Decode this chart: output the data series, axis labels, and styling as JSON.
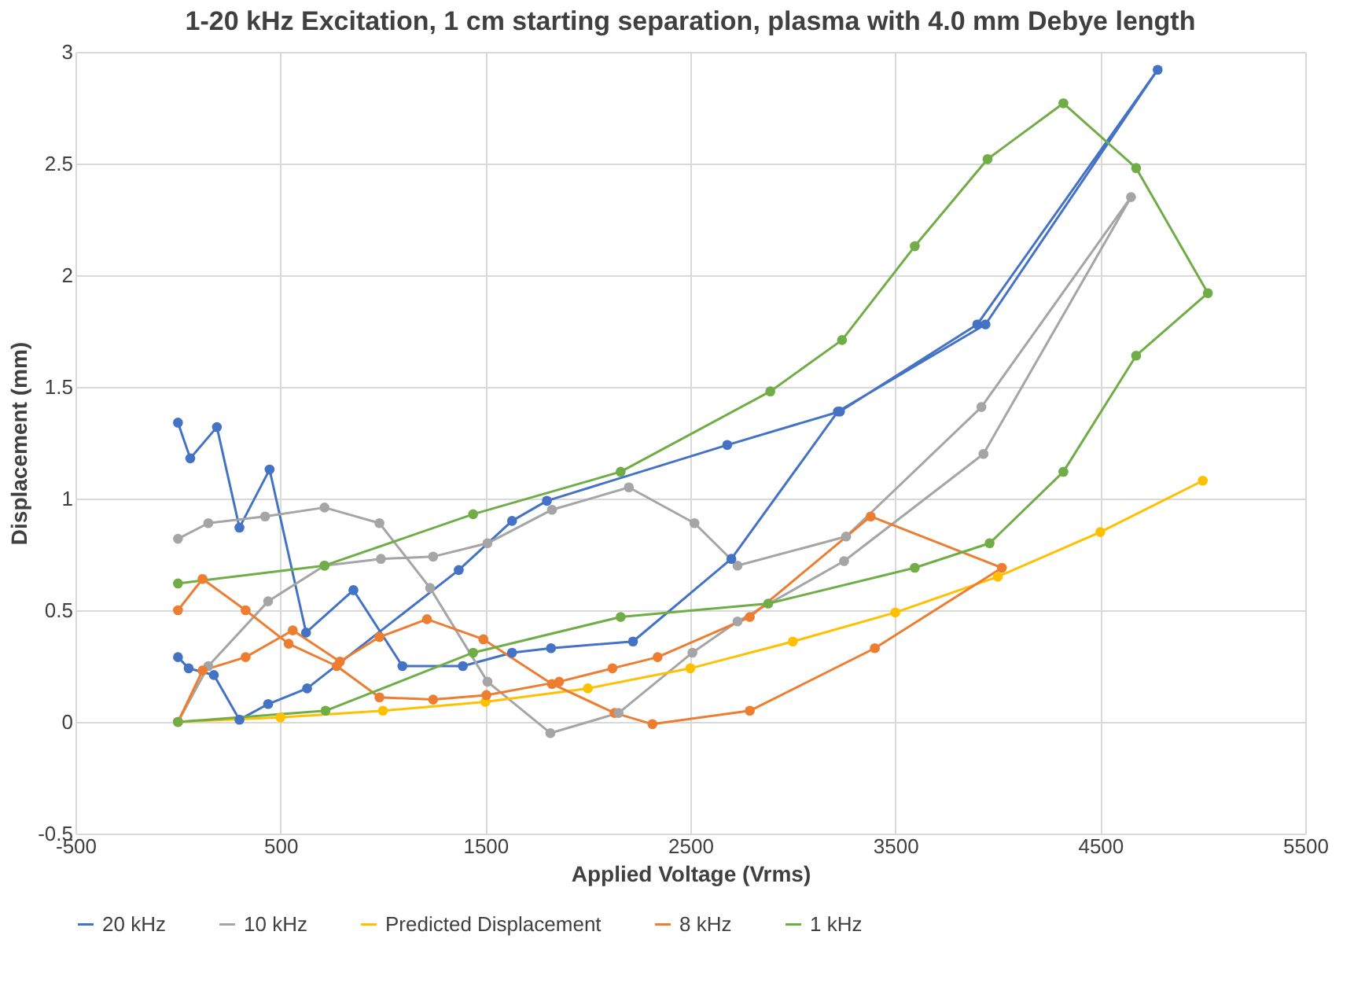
{
  "chart_data": {
    "type": "line",
    "title": "1-20 kHz Excitation, 1 cm starting separation, plasma with 4.0 mm Debye length",
    "xlabel": "Applied Voltage (Vrms)",
    "ylabel": "Displacement (mm)",
    "xlim": [
      -500,
      5500
    ],
    "xticks": [
      -500,
      500,
      1500,
      2500,
      3500,
      4500,
      5500
    ],
    "ylim": [
      -0.5,
      3
    ],
    "yticks": [
      -0.5,
      0,
      0.5,
      1,
      1.5,
      2,
      2.5,
      3
    ],
    "grid": true,
    "legend": "bottom",
    "marker": "circle",
    "line_style": "solid",
    "series": [
      {
        "name": "20 kHz",
        "color": "#4472c4",
        "x": [
          0,
          52,
          175,
          300,
          440,
          630,
          1370,
          1630,
          1800,
          2680,
          3230,
          3900,
          4780,
          3940,
          3220,
          2700,
          2220,
          1820,
          1630,
          1390,
          1095,
          856,
          625,
          447,
          300,
          190,
          60,
          0
        ],
        "values": [
          0.29,
          0.24,
          0.21,
          0.01,
          0.08,
          0.15,
          0.68,
          0.9,
          0.99,
          1.24,
          1.39,
          1.78,
          2.92,
          1.78,
          1.39,
          0.73,
          0.36,
          0.33,
          0.31,
          0.25,
          0.25,
          0.59,
          0.4,
          1.13,
          0.87,
          1.32,
          1.18,
          1.34
        ]
      },
      {
        "name": "10 kHz",
        "color": "#a5a5a5",
        "x": [
          0,
          148,
          440,
          715,
          990,
          1245,
          1510,
          1825,
          2200,
          2520,
          2730,
          3260,
          3920,
          4650,
          3930,
          3250,
          2730,
          2510,
          2150,
          1817,
          1510,
          1230,
          983,
          715,
          425,
          148,
          0
        ],
        "values": [
          0,
          0.25,
          0.54,
          0.7,
          0.73,
          0.74,
          0.8,
          0.95,
          1.05,
          0.89,
          0.7,
          0.83,
          1.41,
          2.35,
          1.2,
          0.72,
          0.45,
          0.31,
          0.04,
          -0.05,
          0.18,
          0.6,
          0.89,
          0.96,
          0.92,
          0.89,
          0.82
        ]
      },
      {
        "name": "Predicted Displacement",
        "color": "#ffc000",
        "x": [
          0,
          500,
          1000,
          1500,
          2000,
          2500,
          3000,
          3500,
          4000,
          4500,
          5000
        ],
        "values": [
          0,
          0.02,
          0.05,
          0.09,
          0.15,
          0.24,
          0.36,
          0.49,
          0.65,
          0.85,
          1.08
        ]
      },
      {
        "name": "8 kHz",
        "color": "#ed7d31",
        "x": [
          0,
          120,
          330,
          560,
          790,
          983,
          1215,
          1490,
          1825,
          2130,
          2315,
          2790,
          3400,
          4020,
          3380,
          2790,
          2340,
          2120,
          1860,
          1505,
          1245,
          983,
          775,
          540,
          330,
          120,
          0
        ],
        "values": [
          0,
          0.23,
          0.29,
          0.41,
          0.27,
          0.38,
          0.46,
          0.37,
          0.17,
          0.04,
          -0.01,
          0.05,
          0.33,
          0.69,
          0.92,
          0.47,
          0.29,
          0.24,
          0.18,
          0.12,
          0.1,
          0.11,
          0.25,
          0.35,
          0.5,
          0.64,
          0.5
        ]
      },
      {
        "name": "1 kHz",
        "color": "#70ad47",
        "x": [
          0,
          720,
          1440,
          2160,
          2880,
          3595,
          3960,
          4320,
          4675,
          5025,
          4675,
          4320,
          3950,
          3595,
          3240,
          2890,
          2160,
          1440,
          715,
          0
        ],
        "values": [
          0,
          0.05,
          0.31,
          0.47,
          0.53,
          0.69,
          0.8,
          1.12,
          1.64,
          1.92,
          2.48,
          2.77,
          2.52,
          2.13,
          1.71,
          1.48,
          1.12,
          0.93,
          0.7,
          0.62
        ]
      }
    ]
  }
}
